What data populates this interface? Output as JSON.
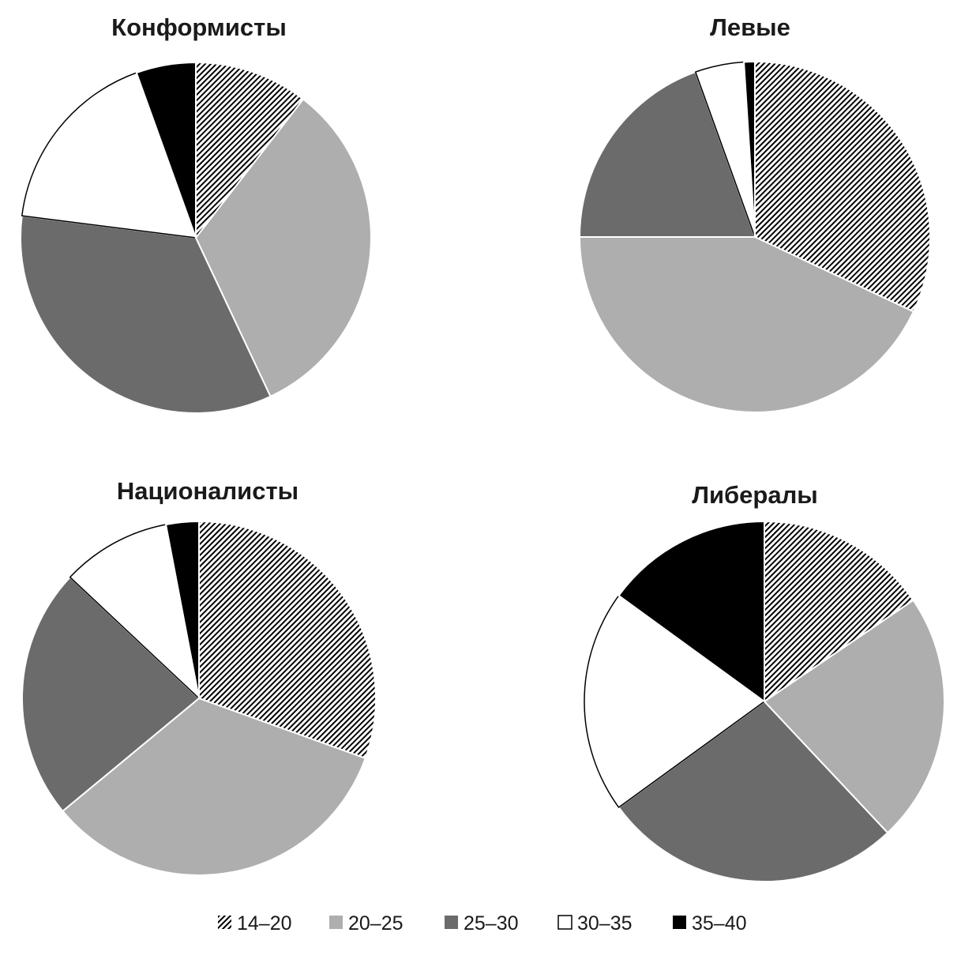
{
  "chart_data": [
    {
      "type": "pie",
      "title": "Конформисты",
      "categories": [
        "14–20",
        "20–25",
        "25–30",
        "30–35",
        "35–40"
      ],
      "values": [
        10.5,
        32.5,
        34,
        17.5,
        5.5
      ]
    },
    {
      "type": "pie",
      "title": "Левые",
      "categories": [
        "14–20",
        "20–25",
        "25–30",
        "30–35",
        "35–40"
      ],
      "values": [
        32,
        43,
        19.5,
        4.5,
        1
      ]
    },
    {
      "type": "pie",
      "title": "Националисты",
      "categories": [
        "14–20",
        "20–25",
        "25–30",
        "30–35",
        "35–40"
      ],
      "values": [
        30.5,
        33.5,
        23,
        10,
        3
      ]
    },
    {
      "type": "pie",
      "title": "Либералы",
      "categories": [
        "14–20",
        "20–25",
        "25–30",
        "30–35",
        "35–40"
      ],
      "values": [
        15.5,
        22.5,
        27,
        20,
        15
      ]
    }
  ],
  "legend": {
    "placement": "bottom",
    "items": [
      {
        "label": "14–20",
        "fill": "hatched",
        "color": "#000000"
      },
      {
        "label": "20–25",
        "fill": "solid",
        "color": "#aeaeae"
      },
      {
        "label": "25–30",
        "fill": "solid",
        "color": "#6b6b6b"
      },
      {
        "label": "30–35",
        "fill": "solid",
        "color": "#ffffff"
      },
      {
        "label": "35–40",
        "fill": "solid",
        "color": "#000000"
      }
    ]
  },
  "colors": {
    "slice_outline": "#ffffff",
    "hatch_line": "#000000",
    "hatch_background": "#ffffff"
  }
}
